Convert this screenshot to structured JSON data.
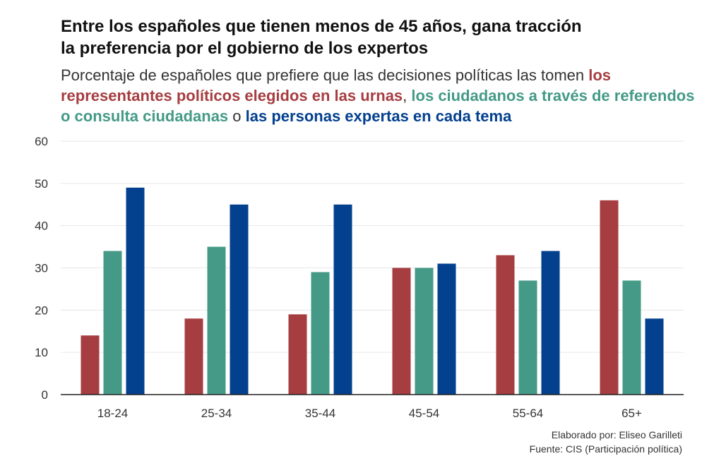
{
  "colors": {
    "elected": "#a63d40",
    "citizens": "#449a87",
    "experts": "#03408e",
    "grid": "#e6e6e6",
    "axis": "#222222",
    "text": "#333333"
  },
  "title_line1": "Entre los españoles que tienen menos de 45 años, gana tracción",
  "title_line2": "la preferencia por el gobierno de los expertos",
  "subtitle": {
    "intro": "Porcentaje de españoles que prefiere que las decisiones políticas las tomen",
    "option1": "los representantes políticos elegidos en las urnas",
    "sep1": ",",
    "option2": "los ciudadanos a través de referendos o consulta ciudadanas",
    "sep2": "o",
    "option3": "las personas expertas en cada tema"
  },
  "footer": {
    "credit": "Elaborado por: Eliseo Garilleti",
    "source": "Fuente: CIS (Participación política)"
  },
  "chart_data": {
    "type": "bar",
    "categories": [
      "18-24",
      "25-34",
      "35-44",
      "45-54",
      "55-64",
      "65+"
    ],
    "series": [
      {
        "values": [
          14,
          18,
          19,
          30,
          33,
          46
        ],
        "color": "#a63d40"
      },
      {
        "values": [
          34,
          35,
          29,
          30,
          27,
          27
        ],
        "color": "#449a87"
      },
      {
        "values": [
          49,
          45,
          45,
          31,
          34,
          18
        ],
        "color": "#03408e"
      }
    ],
    "ylim": [
      0,
      60
    ],
    "yticks": [
      0,
      10,
      20,
      30,
      40,
      50,
      60
    ],
    "grid": true
  }
}
